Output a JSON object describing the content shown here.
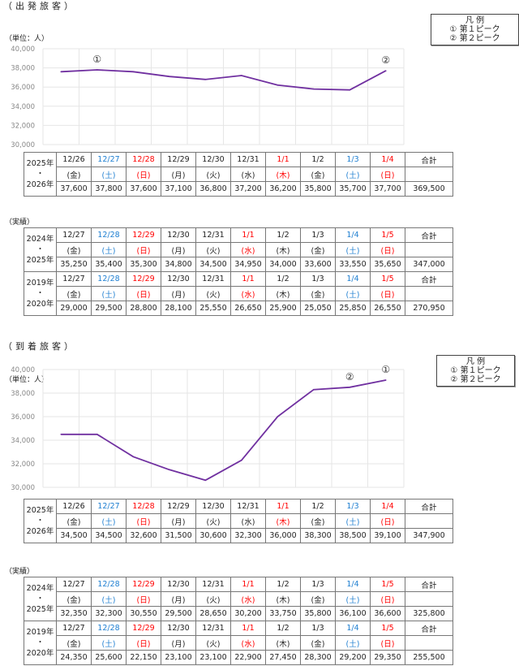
{
  "colors": {
    "line": "#7030a0",
    "saturday": "#1f7fd1",
    "holiday": "#ff0000",
    "weekday": "#222222",
    "grid": "#e6e6e6"
  },
  "departure": {
    "title": "（出発旅客）",
    "unit": "（単位：人）",
    "legend": {
      "title": "凡 例",
      "items": [
        "① 第１ピーク",
        "② 第２ピーク"
      ]
    },
    "results_label": "（実績）",
    "chart_data": {
      "type": "line",
      "categories": [
        "12/26",
        "12/27",
        "12/28",
        "12/29",
        "12/30",
        "12/31",
        "1/1",
        "1/2",
        "1/3",
        "1/4"
      ],
      "values": [
        37600,
        37800,
        37600,
        37100,
        36800,
        37200,
        36200,
        35800,
        35700,
        37700
      ],
      "ylim": [
        30000,
        40000
      ],
      "yticks": [
        "30,000",
        "32,000",
        "34,000",
        "36,000",
        "38,000",
        "40,000"
      ],
      "ytick_values": [
        30000,
        32000,
        34000,
        36000,
        38000,
        40000
      ],
      "annotations": [
        {
          "label": "①",
          "index": 1
        },
        {
          "label": "②",
          "index": 9
        }
      ]
    },
    "tables": [
      {
        "years": [
          "2025年",
          "・",
          "2026年"
        ],
        "total_label": "合計",
        "total": "369,500",
        "dates": [
          "12/26",
          "12/27",
          "12/28",
          "12/29",
          "12/30",
          "12/31",
          "1/1",
          "1/2",
          "1/3",
          "1/4"
        ],
        "days": [
          "(金)",
          "(土)",
          "(日)",
          "(月)",
          "(火)",
          "(水)",
          "(木)",
          "(金)",
          "(土)",
          "(日)"
        ],
        "types": [
          "weekday",
          "saturday",
          "holiday",
          "weekday",
          "weekday",
          "weekday",
          "holiday",
          "weekday",
          "saturday",
          "holiday"
        ],
        "values": [
          "37,600",
          "37,800",
          "37,600",
          "37,100",
          "36,800",
          "37,200",
          "36,200",
          "35,800",
          "35,700",
          "37,700"
        ]
      },
      {
        "years": [
          "2024年",
          "・",
          "2025年"
        ],
        "total_label": "合計",
        "total": "347,000",
        "dates": [
          "12/27",
          "12/28",
          "12/29",
          "12/30",
          "12/31",
          "1/1",
          "1/2",
          "1/3",
          "1/4",
          "1/5"
        ],
        "days": [
          "(金)",
          "(土)",
          "(日)",
          "(月)",
          "(火)",
          "(水)",
          "(木)",
          "(金)",
          "(土)",
          "(日)"
        ],
        "types": [
          "weekday",
          "saturday",
          "holiday",
          "weekday",
          "weekday",
          "holiday",
          "weekday",
          "weekday",
          "saturday",
          "holiday"
        ],
        "values": [
          "35,250",
          "35,400",
          "35,300",
          "34,800",
          "34,500",
          "34,950",
          "34,000",
          "33,600",
          "33,550",
          "35,650"
        ]
      },
      {
        "years": [
          "2019年",
          "・",
          "2020年"
        ],
        "total_label": "合計",
        "total": "270,950",
        "dates": [
          "12/27",
          "12/28",
          "12/29",
          "12/30",
          "12/31",
          "1/1",
          "1/2",
          "1/3",
          "1/4",
          "1/5"
        ],
        "days": [
          "(金)",
          "(土)",
          "(日)",
          "(月)",
          "(火)",
          "(水)",
          "(木)",
          "(金)",
          "(土)",
          "(日)"
        ],
        "types": [
          "weekday",
          "saturday",
          "holiday",
          "weekday",
          "weekday",
          "holiday",
          "weekday",
          "weekday",
          "saturday",
          "holiday"
        ],
        "values": [
          "29,000",
          "29,500",
          "28,800",
          "28,100",
          "25,550",
          "26,650",
          "25,900",
          "25,050",
          "25,850",
          "26,550"
        ]
      }
    ]
  },
  "arrival": {
    "title": "（到着旅客）",
    "unit": "（単位：人）",
    "legend": {
      "title": "凡 例",
      "items": [
        "① 第１ピーク",
        "② 第２ピーク"
      ]
    },
    "results_label": "（実績）",
    "chart_data": {
      "type": "line",
      "categories": [
        "12/26",
        "12/27",
        "12/28",
        "12/29",
        "12/30",
        "12/31",
        "1/1",
        "1/2",
        "1/3",
        "1/4"
      ],
      "values": [
        34500,
        34500,
        32600,
        31500,
        30600,
        32300,
        36000,
        38300,
        38500,
        39100
      ],
      "ylim": [
        30000,
        40000
      ],
      "yticks": [
        "30,000",
        "32,000",
        "34,000",
        "36,000",
        "38,000",
        "40,000"
      ],
      "ytick_values": [
        30000,
        32000,
        34000,
        36000,
        38000,
        40000
      ],
      "annotations": [
        {
          "label": "②",
          "index": 8
        },
        {
          "label": "①",
          "index": 9
        }
      ]
    },
    "tables": [
      {
        "years": [
          "2025年",
          "・",
          "2026年"
        ],
        "total_label": "合計",
        "total": "347,900",
        "dates": [
          "12/26",
          "12/27",
          "12/28",
          "12/29",
          "12/30",
          "12/31",
          "1/1",
          "1/2",
          "1/3",
          "1/4"
        ],
        "days": [
          "(金)",
          "(土)",
          "(日)",
          "(月)",
          "(火)",
          "(水)",
          "(木)",
          "(金)",
          "(土)",
          "(日)"
        ],
        "types": [
          "weekday",
          "saturday",
          "holiday",
          "weekday",
          "weekday",
          "weekday",
          "holiday",
          "weekday",
          "saturday",
          "holiday"
        ],
        "values": [
          "34,500",
          "34,500",
          "32,600",
          "31,500",
          "30,600",
          "32,300",
          "36,000",
          "38,300",
          "38,500",
          "39,100"
        ]
      },
      {
        "years": [
          "2024年",
          "・",
          "2025年"
        ],
        "total_label": "合計",
        "total": "325,800",
        "dates": [
          "12/27",
          "12/28",
          "12/29",
          "12/30",
          "12/31",
          "1/1",
          "1/2",
          "1/3",
          "1/4",
          "1/5"
        ],
        "days": [
          "(金)",
          "(土)",
          "(日)",
          "(月)",
          "(火)",
          "(水)",
          "(木)",
          "(金)",
          "(土)",
          "(日)"
        ],
        "types": [
          "weekday",
          "saturday",
          "holiday",
          "weekday",
          "weekday",
          "holiday",
          "weekday",
          "weekday",
          "saturday",
          "holiday"
        ],
        "values": [
          "32,350",
          "32,300",
          "30,550",
          "29,500",
          "28,650",
          "30,200",
          "33,750",
          "35,800",
          "36,100",
          "36,600"
        ]
      },
      {
        "years": [
          "2019年",
          "・",
          "2020年"
        ],
        "total_label": "合計",
        "total": "255,500",
        "dates": [
          "12/27",
          "12/28",
          "12/29",
          "12/30",
          "12/31",
          "1/1",
          "1/2",
          "1/3",
          "1/4",
          "1/5"
        ],
        "days": [
          "(金)",
          "(土)",
          "(日)",
          "(月)",
          "(火)",
          "(水)",
          "(木)",
          "(金)",
          "(土)",
          "(日)"
        ],
        "types": [
          "weekday",
          "saturday",
          "holiday",
          "weekday",
          "weekday",
          "holiday",
          "weekday",
          "weekday",
          "saturday",
          "holiday"
        ],
        "values": [
          "24,350",
          "25,600",
          "22,150",
          "23,100",
          "23,100",
          "22,900",
          "27,450",
          "28,300",
          "29,200",
          "29,350"
        ]
      }
    ]
  }
}
